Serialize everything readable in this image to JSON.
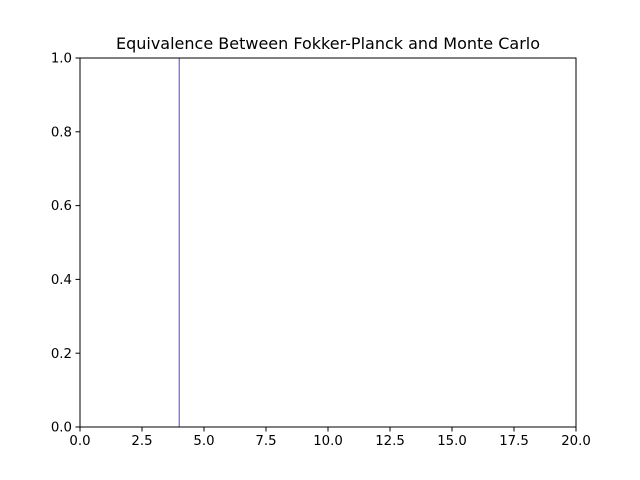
{
  "chart_data": {
    "type": "line",
    "title": "Equivalence Between Fokker-Planck and Monte Carlo",
    "xlabel": "",
    "ylabel": "",
    "xlim": [
      0,
      20
    ],
    "ylim": [
      0,
      1
    ],
    "xticks": [
      0,
      2.5,
      5,
      7.5,
      10,
      12.5,
      15,
      17.5,
      20
    ],
    "xtick_labels": [
      "0.0",
      "2.5",
      "5.0",
      "7.5",
      "10.0",
      "12.5",
      "15.0",
      "17.5",
      "20.0"
    ],
    "yticks": [
      0,
      0.2,
      0.4,
      0.6,
      0.8,
      1.0
    ],
    "ytick_labels": [
      "0.0",
      "0.2",
      "0.4",
      "0.6",
      "0.8",
      "1.0"
    ],
    "grid": false,
    "series": [
      {
        "x": [
          4,
          4
        ],
        "y": [
          0,
          1
        ],
        "color": "#4c4ca6"
      }
    ]
  }
}
